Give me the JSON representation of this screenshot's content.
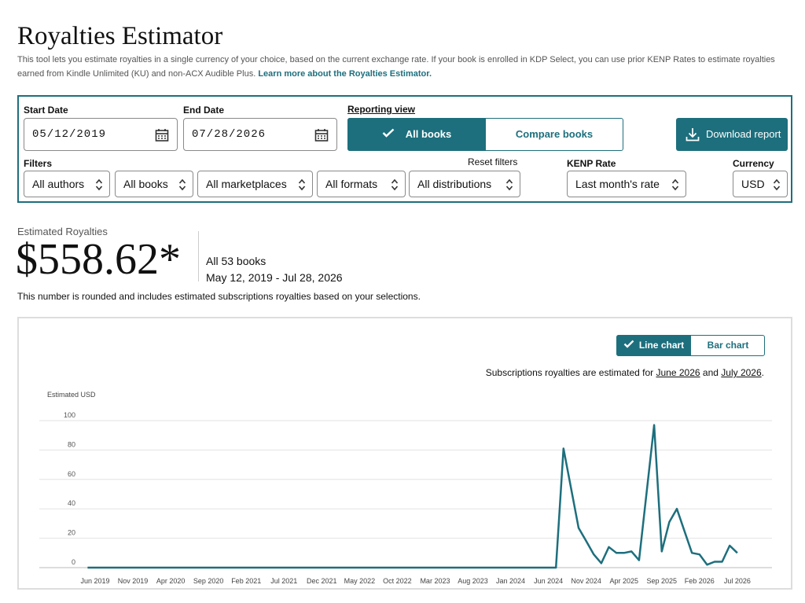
{
  "header": {
    "title": "Royalties Estimator",
    "description": "This tool lets you estimate royalties in a single currency of your choice, based on the current exchange rate. If your book is enrolled in KDP Select, you can use prior KENP Rates to estimate royalties earned from Kindle Unlimited (KU) and non-ACX Audible Plus.",
    "link": "Learn more about the Royalties Estimator."
  },
  "panel": {
    "start_date": {
      "label": "Start Date",
      "value": "05/12/2019"
    },
    "end_date": {
      "label": "End Date",
      "value": "07/28/2026"
    },
    "reporting_view": {
      "label": "Reporting view",
      "options": [
        "All books",
        "Compare books"
      ]
    },
    "download": "Download report",
    "filters": {
      "label": "Filters",
      "reset": "Reset filters",
      "options": [
        "All authors",
        "All books",
        "All marketplaces",
        "All formats",
        "All distributions"
      ]
    },
    "kenp": {
      "label": "KENP Rate",
      "value": "Last month's rate"
    },
    "currency": {
      "label": "Currency",
      "value": "USD"
    }
  },
  "summary": {
    "label": "Estimated Royalties",
    "amount": "$558.62*",
    "books": "All 53 books",
    "range": "May 12, 2019 - Jul 28, 2026",
    "note": "This number is rounded and includes estimated subscriptions royalties based on your selections."
  },
  "chart_controls": {
    "options": [
      "Line chart",
      "Bar chart"
    ],
    "estimate_note": [
      "Subscriptions royalties are estimated for",
      "June 2026",
      "and",
      "July 2026",
      "."
    ]
  },
  "chart_data": {
    "type": "line",
    "y_label": "Estimated USD",
    "categories": [
      null,
      "Jun 2019",
      null,
      null,
      null,
      null,
      "Nov 2019",
      null,
      null,
      null,
      null,
      "Apr 2020",
      null,
      null,
      null,
      null,
      "Sep 2020",
      null,
      null,
      null,
      null,
      "Feb 2021",
      null,
      null,
      null,
      null,
      "Jul 2021",
      null,
      null,
      null,
      null,
      "Dec 2021",
      null,
      null,
      null,
      null,
      "May 2022",
      null,
      null,
      null,
      null,
      "Oct 2022",
      null,
      null,
      null,
      null,
      "Mar 2023",
      null,
      null,
      null,
      null,
      "Aug 2023",
      null,
      null,
      null,
      null,
      "Jan 2024",
      null,
      null,
      null,
      null,
      "Jun 2024",
      null,
      null,
      null,
      null,
      "Nov 2024",
      null,
      null,
      null,
      null,
      "Apr 2025",
      null,
      null,
      null,
      null,
      "Sep 2025",
      null,
      null,
      null,
      null,
      "Feb 2026",
      null,
      null,
      null,
      null,
      "Jul 2026"
    ],
    "series": [
      {
        "name": "Estimated USD",
        "color": "#1d6f7d",
        "values": [
          0,
          0,
          0,
          0,
          0,
          0,
          0,
          0,
          0,
          0,
          0,
          0,
          0,
          0,
          0,
          0,
          0,
          0,
          0,
          0,
          0,
          0,
          0,
          0,
          0,
          0,
          0,
          0,
          0,
          0,
          0,
          0,
          0,
          0,
          0,
          0,
          0,
          0,
          0,
          0,
          0,
          0,
          0,
          0,
          0,
          0,
          0,
          0,
          0,
          0,
          0,
          0,
          0,
          0,
          0,
          0,
          0,
          0,
          0,
          0,
          0,
          0,
          0,
          81,
          54,
          27,
          18,
          9,
          3,
          14,
          10,
          10,
          11,
          5,
          51,
          97,
          11,
          31,
          40,
          25,
          10,
          9,
          2,
          4,
          4,
          15,
          10
        ]
      }
    ],
    "ylim": [
      0,
      100
    ],
    "yticks": [
      0,
      20,
      40,
      60,
      80,
      100
    ],
    "grid": true
  }
}
